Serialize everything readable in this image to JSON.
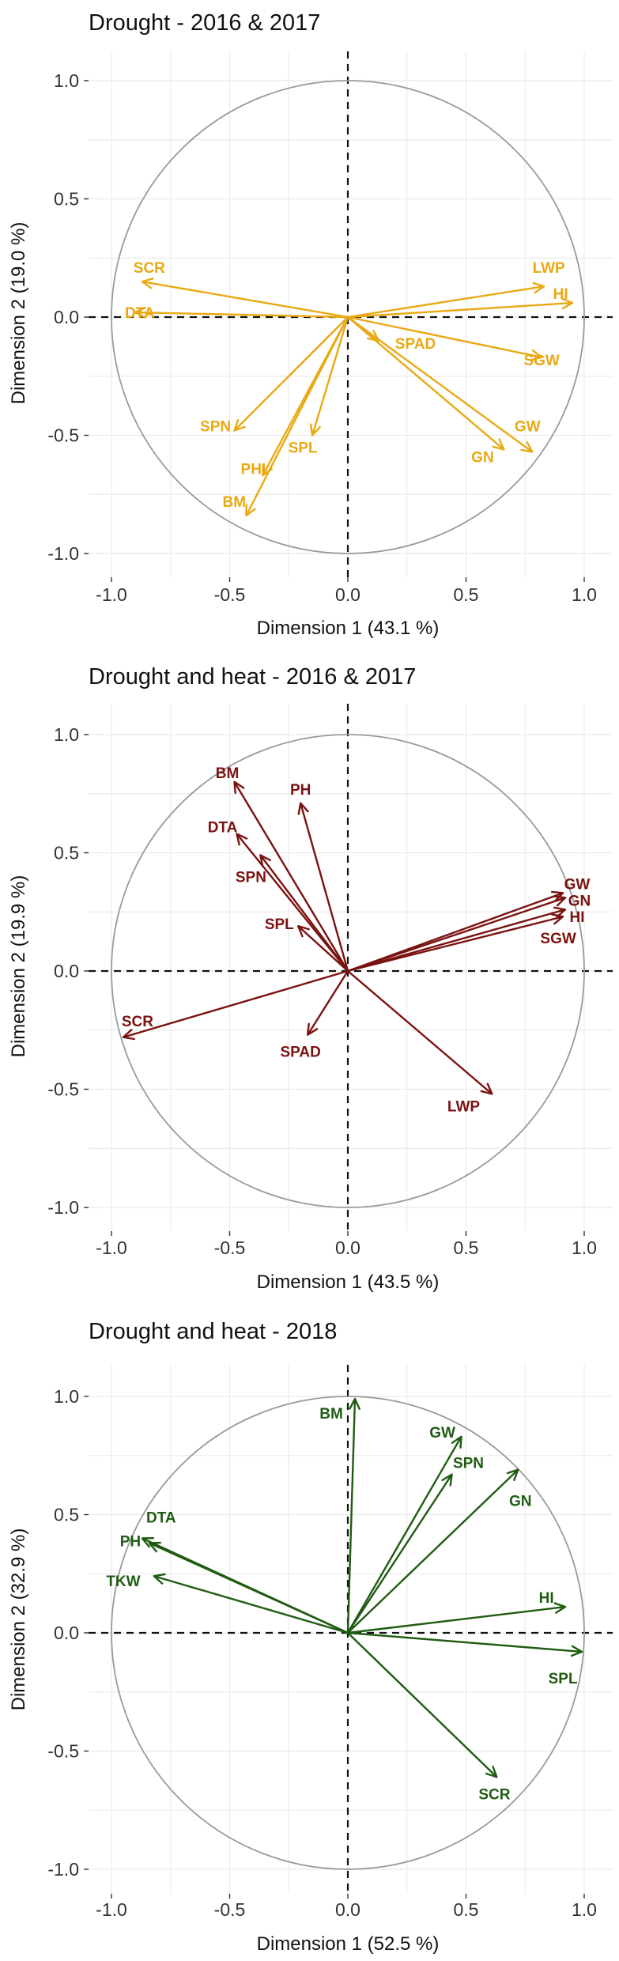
{
  "chart_data": [
    {
      "type": "scatter",
      "title": "Drought - 2016 & 2017",
      "xlabel": "Dimension 1 (43.1 %)",
      "ylabel": "Dimension 2 (19.0 %)",
      "xlim": [
        -1,
        1
      ],
      "ylim": [
        -1,
        1
      ],
      "xticks": [
        "-1.0",
        "-0.5",
        "0.0",
        "0.5",
        "1.0"
      ],
      "yticks": [
        "-1.0",
        "-0.5",
        "0.0",
        "0.5",
        "1.0"
      ],
      "color": "#e8a914",
      "vectors": [
        {
          "name": "SCR",
          "x": -0.87,
          "y": 0.15,
          "lx": -0.84,
          "ly": 0.21,
          "anchor": "middle"
        },
        {
          "name": "DTA",
          "x": -0.9,
          "y": 0.02,
          "lx": -0.88,
          "ly": 0.02,
          "anchor": "middle"
        },
        {
          "name": "LWP",
          "x": 0.83,
          "y": 0.13,
          "lx": 0.85,
          "ly": 0.21,
          "anchor": "middle"
        },
        {
          "name": "HI",
          "x": 0.95,
          "y": 0.06,
          "lx": 0.9,
          "ly": 0.1,
          "anchor": "middle"
        },
        {
          "name": "SPAD",
          "x": 0.13,
          "y": -0.1,
          "lx": 0.2,
          "ly": -0.11,
          "anchor": "start"
        },
        {
          "name": "SGW",
          "x": 0.82,
          "y": -0.17,
          "lx": 0.82,
          "ly": -0.18,
          "anchor": "middle"
        },
        {
          "name": "SPN",
          "x": -0.48,
          "y": -0.48,
          "lx": -0.56,
          "ly": -0.46,
          "anchor": "middle"
        },
        {
          "name": "SPL",
          "x": -0.15,
          "y": -0.5,
          "lx": -0.19,
          "ly": -0.55,
          "anchor": "middle"
        },
        {
          "name": "PHI",
          "x": -0.36,
          "y": -0.67,
          "lx": -0.4,
          "ly": -0.64,
          "anchor": "middle"
        },
        {
          "name": "BM",
          "x": -0.43,
          "y": -0.84,
          "lx": -0.53,
          "ly": -0.78,
          "anchor": "start"
        },
        {
          "name": "GW",
          "x": 0.78,
          "y": -0.57,
          "lx": 0.76,
          "ly": -0.46,
          "anchor": "middle"
        },
        {
          "name": "GN",
          "x": 0.66,
          "y": -0.56,
          "lx": 0.57,
          "ly": -0.59,
          "anchor": "middle"
        }
      ]
    },
    {
      "type": "scatter",
      "title": "Drought and heat - 2016 & 2017",
      "xlabel": "Dimension 1 (43.5 %)",
      "ylabel": "Dimension 2 (19.9 %)",
      "xlim": [
        -1,
        1
      ],
      "ylim": [
        -1,
        1
      ],
      "xticks": [
        "-1.0",
        "-0.5",
        "0.0",
        "0.5",
        "1.0"
      ],
      "yticks": [
        "-1.0",
        "-0.5",
        "0.0",
        "0.5",
        "1.0"
      ],
      "color": "#7a1210",
      "vectors": [
        {
          "name": "BM",
          "x": -0.48,
          "y": 0.8,
          "lx": -0.51,
          "ly": 0.84,
          "anchor": "middle"
        },
        {
          "name": "PH",
          "x": -0.2,
          "y": 0.71,
          "lx": -0.2,
          "ly": 0.77,
          "anchor": "middle"
        },
        {
          "name": "DTA",
          "x": -0.47,
          "y": 0.58,
          "lx": -0.53,
          "ly": 0.61,
          "anchor": "middle"
        },
        {
          "name": "SPN",
          "x": -0.37,
          "y": 0.49,
          "lx": -0.41,
          "ly": 0.4,
          "anchor": "middle"
        },
        {
          "name": "SPL",
          "x": -0.21,
          "y": 0.19,
          "lx": -0.29,
          "ly": 0.2,
          "anchor": "middle"
        },
        {
          "name": "GW",
          "x": 0.91,
          "y": 0.33,
          "lx": 0.97,
          "ly": 0.37,
          "anchor": "middle"
        },
        {
          "name": "GN",
          "x": 0.92,
          "y": 0.31,
          "lx": 0.98,
          "ly": 0.3,
          "anchor": "middle"
        },
        {
          "name": "HI",
          "x": 0.92,
          "y": 0.26,
          "lx": 0.97,
          "ly": 0.23,
          "anchor": "middle"
        },
        {
          "name": "SGW",
          "x": 0.91,
          "y": 0.23,
          "lx": 0.89,
          "ly": 0.14,
          "anchor": "middle"
        },
        {
          "name": "SCR",
          "x": -0.95,
          "y": -0.28,
          "lx": -0.89,
          "ly": -0.21,
          "anchor": "middle"
        },
        {
          "name": "SPAD",
          "x": -0.17,
          "y": -0.27,
          "lx": -0.2,
          "ly": -0.34,
          "anchor": "middle"
        },
        {
          "name": "LWP",
          "x": 0.61,
          "y": -0.52,
          "lx": 0.49,
          "ly": -0.57,
          "anchor": "middle"
        }
      ]
    },
    {
      "type": "scatter",
      "title": "Drought and heat - 2018",
      "xlabel": "Dimension 1 (52.5 %)",
      "ylabel": "Dimension 2 (32.9 %)",
      "xlim": [
        -1,
        1
      ],
      "ylim": [
        -1,
        1
      ],
      "xticks": [
        "-1.0",
        "-0.5",
        "0.0",
        "0.5",
        "1.0"
      ],
      "yticks": [
        "-1.0",
        "-0.5",
        "0.0",
        "0.5",
        "1.0"
      ],
      "color": "#1f5c12",
      "vectors": [
        {
          "name": "BM",
          "x": 0.03,
          "y": 0.99,
          "lx": -0.07,
          "ly": 0.93,
          "anchor": "middle"
        },
        {
          "name": "GW",
          "x": 0.48,
          "y": 0.83,
          "lx": 0.4,
          "ly": 0.85,
          "anchor": "middle"
        },
        {
          "name": "SPN",
          "x": 0.44,
          "y": 0.67,
          "lx": 0.51,
          "ly": 0.72,
          "anchor": "middle"
        },
        {
          "name": "GN",
          "x": 0.72,
          "y": 0.69,
          "lx": 0.73,
          "ly": 0.56,
          "anchor": "middle"
        },
        {
          "name": "DTA",
          "x": -0.84,
          "y": 0.38,
          "lx": -0.79,
          "ly": 0.49,
          "anchor": "middle"
        },
        {
          "name": "PH",
          "x": -0.87,
          "y": 0.4,
          "lx": -0.92,
          "ly": 0.39,
          "anchor": "middle"
        },
        {
          "name": "TKW",
          "x": -0.82,
          "y": 0.24,
          "lx": -0.95,
          "ly": 0.22,
          "anchor": "middle"
        },
        {
          "name": "HI",
          "x": 0.92,
          "y": 0.11,
          "lx": 0.84,
          "ly": 0.15,
          "anchor": "middle"
        },
        {
          "name": "SPL",
          "x": 0.99,
          "y": -0.08,
          "lx": 0.91,
          "ly": -0.19,
          "anchor": "middle"
        },
        {
          "name": "SCR",
          "x": 0.63,
          "y": -0.61,
          "lx": 0.62,
          "ly": -0.68,
          "anchor": "middle"
        }
      ]
    }
  ]
}
